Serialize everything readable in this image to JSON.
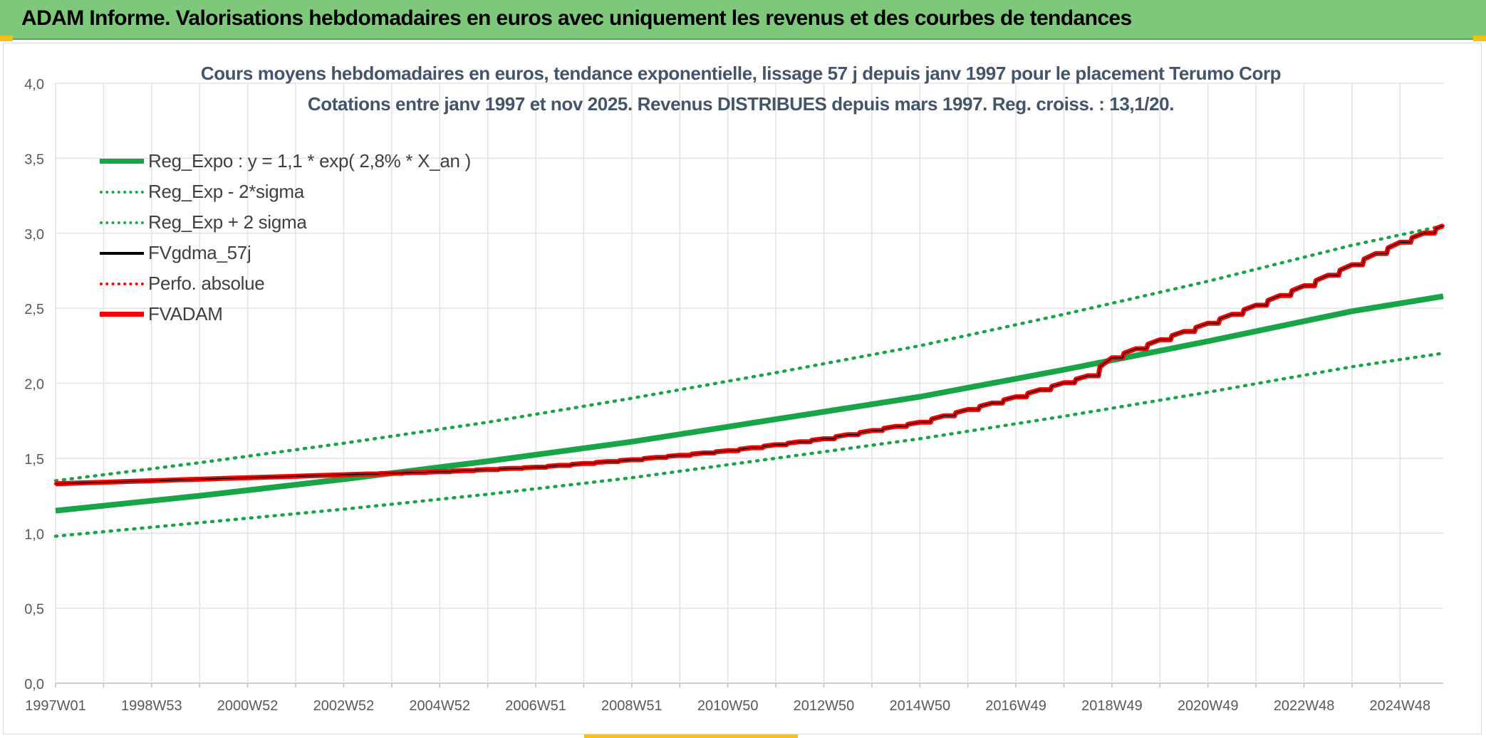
{
  "header": {
    "title": "ADAM Informe. Valorisations hebdomadaires en euros avec uniquement les revenus et des courbes de tendances"
  },
  "colors": {
    "header_bg": "#7ec87b",
    "green": "#17a548",
    "red": "#ff0000",
    "black": "#000000",
    "axis_text": "#595959",
    "title_text": "#44546a"
  },
  "chart_data": {
    "type": "line",
    "title": "Cours moyens hebdomadaires en euros, tendance exponentielle, lissage 57 j depuis janv 1997 pour le placement Terumo Corp",
    "subtitle": "Cotations entre janv 1997 et nov 2025. Revenus DISTRIBUES depuis mars 1997. Reg. croiss. : 13,1/20.",
    "xlabel": "",
    "ylabel": "",
    "ylim": [
      0,
      4
    ],
    "xlim": [
      1997.0,
      2025.9
    ],
    "y_ticks": [
      "0,0",
      "0,5",
      "1,0",
      "1,5",
      "2,0",
      "2,5",
      "3,0",
      "3,5",
      "4,0"
    ],
    "x_tick_labels": [
      "1997W01",
      "1998W53",
      "2000W52",
      "2002W52",
      "2004W52",
      "2006W51",
      "2008W51",
      "2010W50",
      "2012W50",
      "2014W50",
      "2016W49",
      "2018W49",
      "2020W49",
      "2022W48",
      "2024W48"
    ],
    "grid": true,
    "legend_position": "top-left",
    "series": [
      {
        "name": "Reg_Expo : y = 1,1 * exp( 2,8% *  X_an )",
        "style": "solid-thick",
        "color": "#17a548",
        "x": [
          1997.0,
          2000.0,
          2003.0,
          2006.0,
          2009.0,
          2012.0,
          2015.0,
          2018.0,
          2021.0,
          2024.0,
          2025.9
        ],
        "y": [
          1.15,
          1.25,
          1.36,
          1.48,
          1.61,
          1.76,
          1.91,
          2.09,
          2.28,
          2.48,
          2.58
        ]
      },
      {
        "name": "Reg_Exp - 2*sigma",
        "style": "dotted",
        "color": "#17a548",
        "x": [
          1997.0,
          2000.0,
          2003.0,
          2006.0,
          2009.0,
          2012.0,
          2015.0,
          2018.0,
          2021.0,
          2024.0,
          2025.9
        ],
        "y": [
          0.98,
          1.07,
          1.16,
          1.26,
          1.37,
          1.5,
          1.63,
          1.78,
          1.94,
          2.11,
          2.2
        ]
      },
      {
        "name": "Reg_Exp + 2 sigma",
        "style": "dotted",
        "color": "#17a548",
        "x": [
          1997.0,
          2000.0,
          2003.0,
          2006.0,
          2009.0,
          2012.0,
          2015.0,
          2018.0,
          2021.0,
          2024.0,
          2025.9
        ],
        "y": [
          1.35,
          1.47,
          1.6,
          1.74,
          1.9,
          2.07,
          2.25,
          2.46,
          2.68,
          2.92,
          3.05
        ]
      },
      {
        "name": "FVgdma_57j",
        "style": "solid",
        "color": "#000000",
        "x": [
          1997.0,
          1999.0,
          2001.0,
          2003.0,
          2005.0,
          2007.0,
          2009.0,
          2011.0,
          2013.0,
          2015.0,
          2017.0,
          2018.5,
          2019.0,
          2020.0,
          2021.0,
          2022.0,
          2023.0,
          2024.0,
          2025.0,
          2025.9
        ],
        "y": [
          1.33,
          1.35,
          1.37,
          1.39,
          1.41,
          1.44,
          1.49,
          1.55,
          1.63,
          1.74,
          1.91,
          2.05,
          2.17,
          2.29,
          2.4,
          2.52,
          2.65,
          2.79,
          2.94,
          3.05
        ]
      },
      {
        "name": "Perfo. absolue",
        "style": "dotted",
        "color": "#ff0000",
        "x": [
          1997.0,
          1999.0,
          2001.0,
          2003.0,
          2005.0,
          2007.0,
          2009.0,
          2011.0,
          2013.0,
          2015.0,
          2017.0,
          2018.5,
          2019.0,
          2020.0,
          2021.0,
          2022.0,
          2023.0,
          2024.0,
          2025.0,
          2025.9
        ],
        "y": [
          1.33,
          1.35,
          1.37,
          1.39,
          1.41,
          1.44,
          1.49,
          1.55,
          1.63,
          1.74,
          1.91,
          2.05,
          2.17,
          2.29,
          2.4,
          2.52,
          2.65,
          2.79,
          2.94,
          3.05
        ]
      },
      {
        "name": "FVADAM",
        "style": "solid-thick-steps",
        "color": "#ff0000",
        "x": [
          1997.0,
          1999.0,
          2001.0,
          2003.0,
          2005.0,
          2007.0,
          2009.0,
          2011.0,
          2013.0,
          2015.0,
          2017.0,
          2018.5,
          2019.0,
          2020.0,
          2021.0,
          2022.0,
          2023.0,
          2024.0,
          2025.0,
          2025.9
        ],
        "y": [
          1.33,
          1.35,
          1.37,
          1.39,
          1.41,
          1.44,
          1.49,
          1.55,
          1.63,
          1.74,
          1.91,
          2.05,
          2.17,
          2.29,
          2.4,
          2.52,
          2.65,
          2.79,
          2.94,
          3.05
        ]
      }
    ]
  }
}
